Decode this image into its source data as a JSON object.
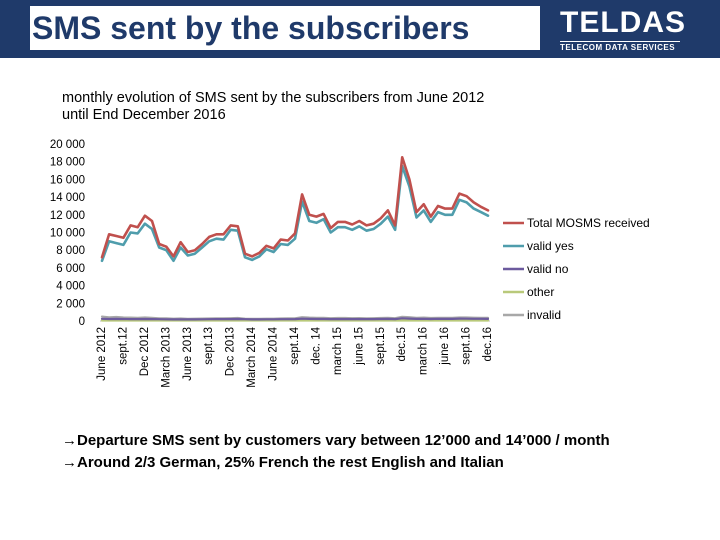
{
  "header": {
    "title": "SMS sent by the subscribers"
  },
  "logo": {
    "name": "TELDAS",
    "tagline": "TELECOM DATA SERVICES"
  },
  "chart_data": {
    "type": "line",
    "title": "monthly evolution of SMS sent by the subscribers from June 2012 until End December 2016",
    "ylim": [
      0,
      20000
    ],
    "yticks": [
      "20 000",
      "18 000",
      "16 000",
      "14 000",
      "12 000",
      "10 000",
      "8 000",
      "6 000",
      "4 000",
      "2 000",
      "0"
    ],
    "ytick_values": [
      20000,
      18000,
      16000,
      14000,
      12000,
      10000,
      8000,
      6000,
      4000,
      2000,
      0
    ],
    "xticks": [
      {
        "label": "June 2012",
        "index": 0
      },
      {
        "label": "sept.12",
        "index": 3
      },
      {
        "label": "Dec 2012",
        "index": 6
      },
      {
        "label": "March 2013",
        "index": 9
      },
      {
        "label": "June 2013",
        "index": 12
      },
      {
        "label": "sept.13",
        "index": 15
      },
      {
        "label": "Dec 2013",
        "index": 18
      },
      {
        "label": "March 2014",
        "index": 21
      },
      {
        "label": "June 2014",
        "index": 24
      },
      {
        "label": "sept.14",
        "index": 27
      },
      {
        "label": "dec. 14",
        "index": 30
      },
      {
        "label": "march 15",
        "index": 33
      },
      {
        "label": "june 15",
        "index": 36
      },
      {
        "label": "sept.15",
        "index": 39
      },
      {
        "label": "dec.15",
        "index": 42
      },
      {
        "label": "march 16",
        "index": 45
      },
      {
        "label": "june 16",
        "index": 48
      },
      {
        "label": "sept.16",
        "index": 51
      },
      {
        "label": "dec.16",
        "index": 54
      }
    ],
    "grid": false,
    "legend_position": "right",
    "series": [
      {
        "name": "Total MOSMS received",
        "color": "#c0504d",
        "values": [
          7200,
          9800,
          9600,
          9400,
          10800,
          10600,
          11900,
          11300,
          8700,
          8400,
          7300,
          8900,
          7800,
          8000,
          8700,
          9500,
          9800,
          9800,
          10800,
          10700,
          7600,
          7300,
          7700,
          8500,
          8200,
          9200,
          9100,
          9900,
          14300,
          12000,
          11800,
          12100,
          10500,
          11200,
          11200,
          10900,
          11300,
          10800,
          11000,
          11600,
          12500,
          10800,
          18500,
          16000,
          12300,
          13200,
          11800,
          13000,
          12700,
          12700,
          14400,
          14100,
          13400,
          12900,
          12500
        ]
      },
      {
        "name": "valid yes",
        "color": "#4f9dac",
        "values": [
          6800,
          9000,
          8800,
          8600,
          10000,
          9900,
          11000,
          10400,
          8300,
          8000,
          6800,
          8300,
          7400,
          7600,
          8300,
          9000,
          9300,
          9200,
          10300,
          10200,
          7200,
          6900,
          7300,
          8100,
          7800,
          8700,
          8600,
          9300,
          13500,
          11300,
          11100,
          11500,
          10000,
          10600,
          10600,
          10300,
          10700,
          10200,
          10400,
          11000,
          11800,
          10300,
          17500,
          15200,
          11700,
          12500,
          11200,
          12300,
          12000,
          12000,
          13700,
          13400,
          12700,
          12300,
          11900
        ]
      },
      {
        "name": "valid no",
        "color": "#6c5a9e",
        "values": [
          250,
          230,
          240,
          230,
          220,
          210,
          230,
          220,
          200,
          190,
          180,
          190,
          180,
          180,
          190,
          200,
          210,
          210,
          220,
          230,
          200,
          180,
          180,
          190,
          190,
          200,
          200,
          210,
          260,
          240,
          230,
          230,
          210,
          220,
          220,
          210,
          220,
          210,
          220,
          230,
          240,
          210,
          300,
          270,
          240,
          250,
          230,
          250,
          240,
          240,
          270,
          260,
          250,
          250,
          240
        ]
      },
      {
        "name": "other",
        "color": "#b9c97a",
        "values": [
          60,
          60,
          60,
          60,
          60,
          60,
          60,
          60,
          60,
          60,
          60,
          60,
          60,
          60,
          60,
          60,
          60,
          60,
          60,
          60,
          60,
          60,
          60,
          60,
          60,
          60,
          60,
          60,
          60,
          60,
          60,
          60,
          60,
          60,
          60,
          60,
          60,
          60,
          60,
          60,
          60,
          60,
          60,
          60,
          60,
          60,
          60,
          60,
          60,
          60,
          60,
          60,
          60,
          60,
          60
        ]
      },
      {
        "name": "invalid",
        "color": "#a8a8a8",
        "values": [
          500,
          420,
          450,
          400,
          380,
          360,
          400,
          350,
          300,
          290,
          260,
          280,
          250,
          260,
          270,
          280,
          300,
          300,
          320,
          340,
          260,
          240,
          250,
          260,
          260,
          280,
          290,
          300,
          430,
          380,
          360,
          360,
          320,
          340,
          340,
          320,
          330,
          310,
          320,
          340,
          360,
          320,
          480,
          430,
          360,
          380,
          340,
          360,
          350,
          350,
          400,
          390,
          370,
          360,
          350
        ]
      }
    ]
  },
  "notes": [
    "→Departure SMS sent by customers vary between 12’000 and 14’000 / month",
    "→Around 2/3 German, 25% French the rest English and Italian"
  ]
}
